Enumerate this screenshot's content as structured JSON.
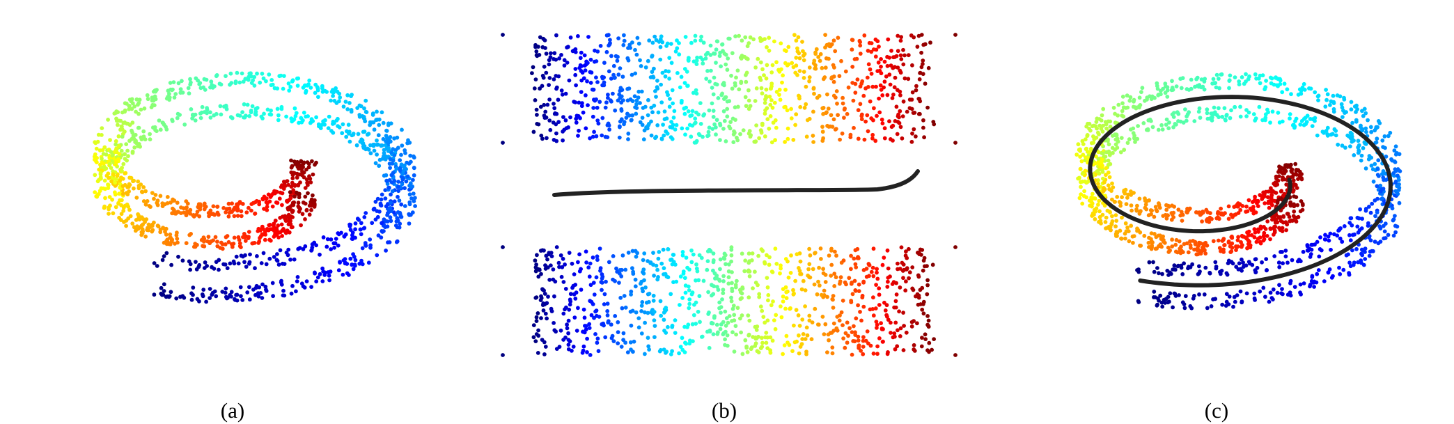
{
  "panels": [
    {
      "id": "a",
      "caption": "(a)",
      "kind": "swiss-roll"
    },
    {
      "id": "b",
      "caption": "(b)",
      "kind": "unrolled-sheets"
    },
    {
      "id": "c",
      "caption": "(c)",
      "kind": "swiss-roll-with-curve"
    }
  ],
  "colors": {
    "colormap": "jet",
    "curve": "#222222",
    "background": "#ffffff"
  }
}
